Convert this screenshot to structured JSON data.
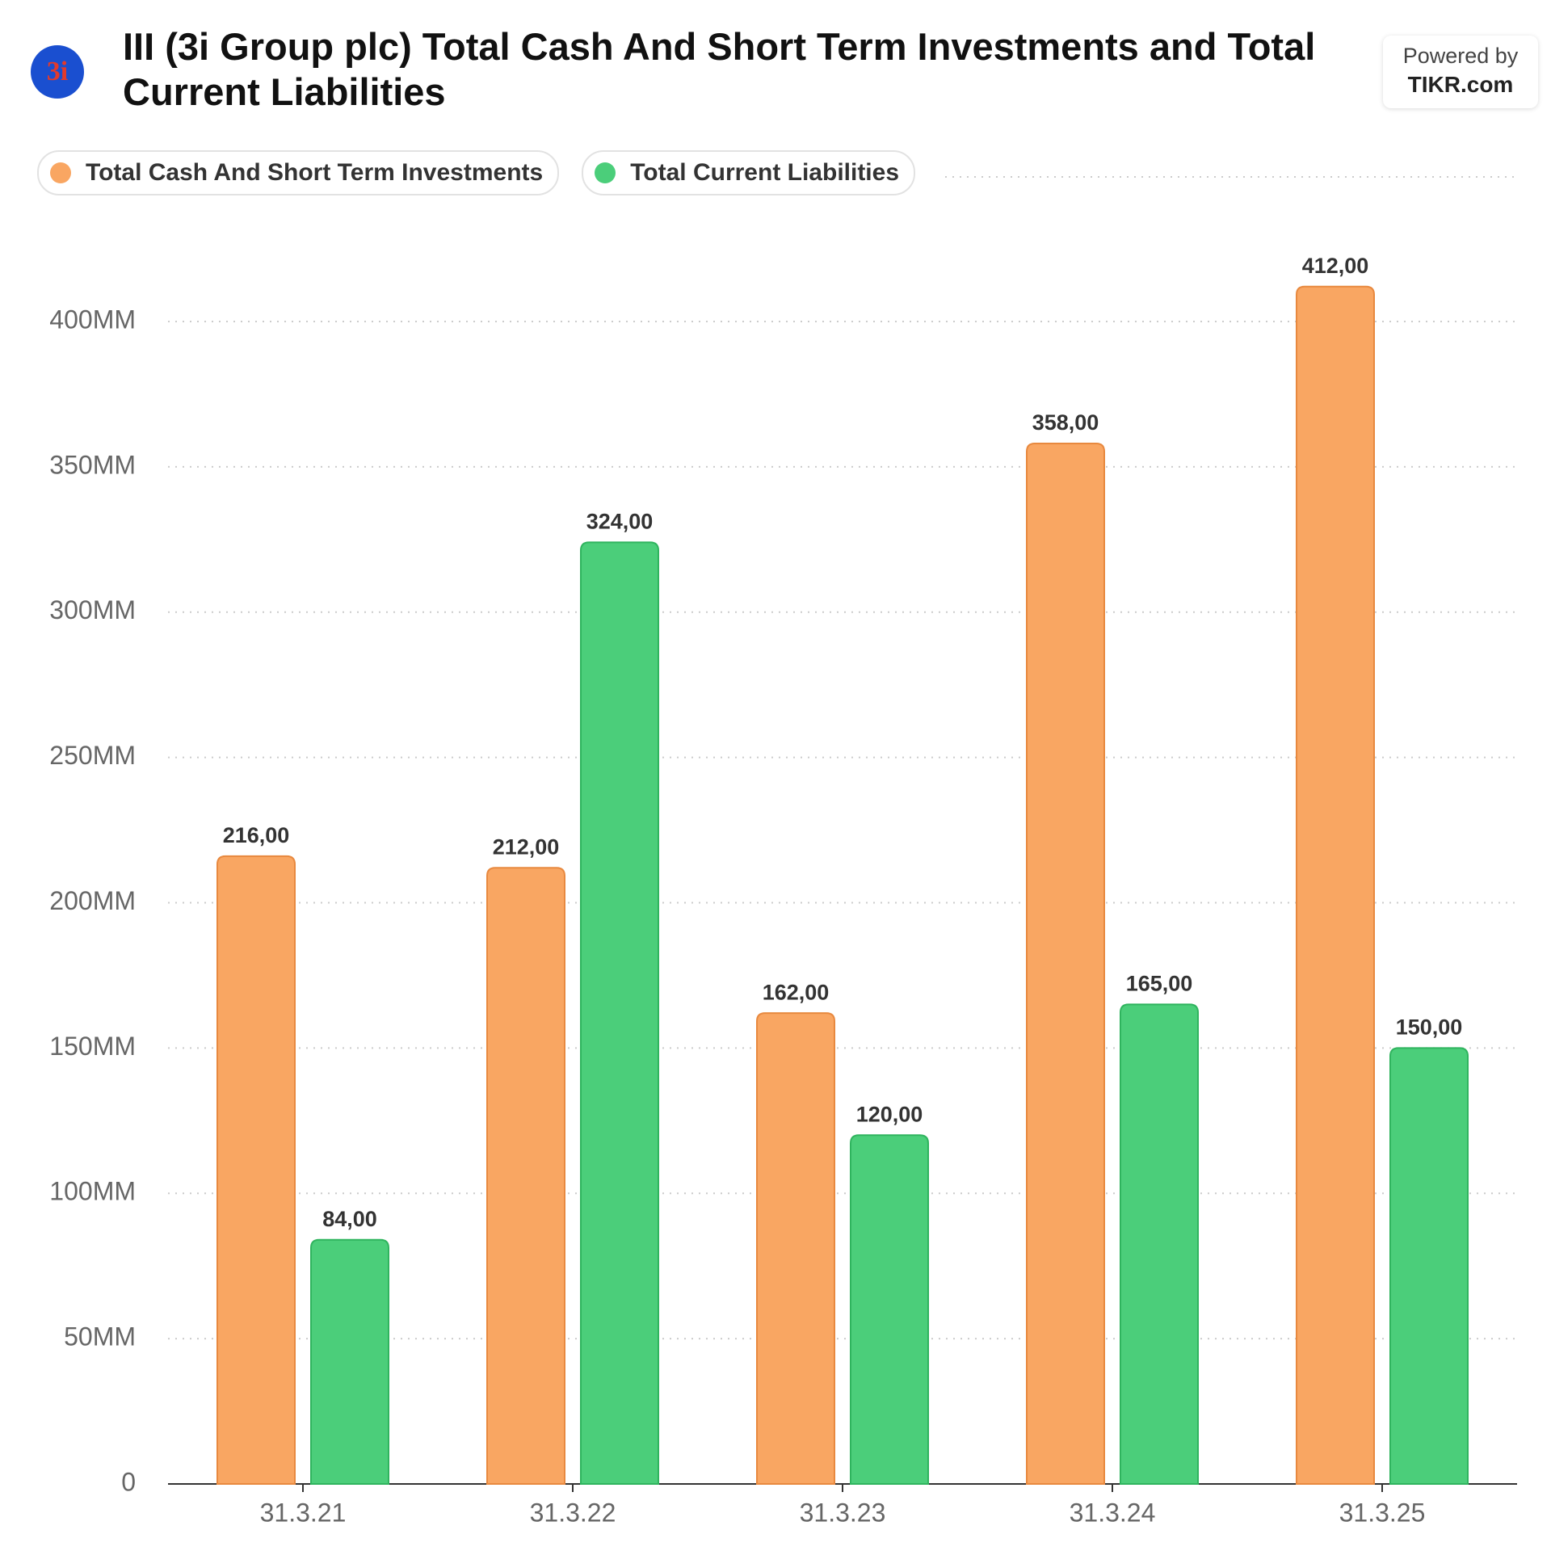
{
  "header": {
    "title": "III (3i Group plc) Total Cash And Short Term Investments and Total Current Liabilities",
    "logo_text": "3i"
  },
  "branding": {
    "powered_by": "Powered by",
    "site": "TIKR.com"
  },
  "chart_data": {
    "type": "bar",
    "categories": [
      "31.3.21",
      "31.3.22",
      "31.3.23",
      "31.3.24",
      "31.3.25"
    ],
    "series": [
      {
        "name": "Total Cash And Short Term Investments",
        "color": "#f9a662",
        "values": [
          216,
          212,
          162,
          358,
          412
        ],
        "value_labels": [
          "216,00",
          "212,00",
          "162,00",
          "358,00",
          "412,00"
        ]
      },
      {
        "name": "Total Current Liabilities",
        "color": "#4bce7a",
        "values": [
          84,
          324,
          120,
          165,
          150
        ],
        "value_labels": [
          "84,00",
          "324,00",
          "120,00",
          "165,00",
          "150,00"
        ]
      }
    ],
    "ylim": [
      0,
      425
    ],
    "yticks": [
      0,
      {
        "value": 50,
        "label": "50MM"
      },
      {
        "value": 100,
        "label": "100MM"
      },
      {
        "value": 150,
        "label": "150MM"
      },
      {
        "value": 200,
        "label": "200MM"
      },
      {
        "value": 250,
        "label": "250MM"
      },
      {
        "value": 300,
        "label": "300MM"
      },
      {
        "value": 350,
        "label": "350MM"
      },
      {
        "value": 400,
        "label": "400MM"
      }
    ],
    "grid": true
  }
}
